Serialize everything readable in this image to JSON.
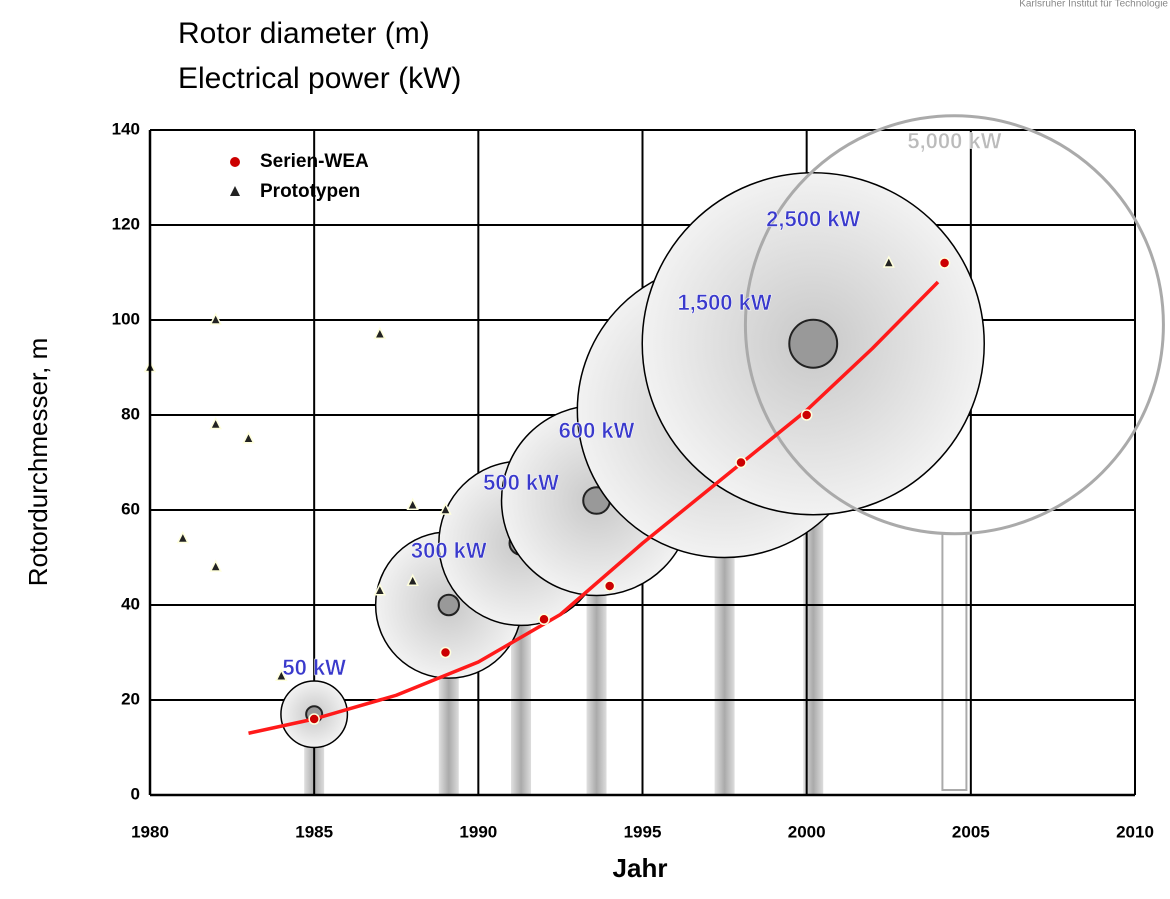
{
  "chart_data": {
    "type": "scatter",
    "title": [
      "Rotor diameter (m)",
      "Electrical power (kW)"
    ],
    "corner_text": "Karlsruher Institut für Technologie",
    "xlabel": "Jahr",
    "ylabel": "Rotordurchmesser, m",
    "xlim": [
      1980,
      2010
    ],
    "ylim": [
      0,
      140
    ],
    "xticks": [
      1980,
      1985,
      1990,
      1995,
      2000,
      2005,
      2010
    ],
    "yticks": [
      0,
      20,
      40,
      60,
      80,
      100,
      120,
      140
    ],
    "grid": true,
    "legend": "upper left",
    "series": [
      {
        "name": "Serien-WEA",
        "marker": "circle",
        "color": "#cc0000",
        "x": [
          1985,
          1989,
          1992,
          1994,
          1998,
          2000,
          2004.2
        ],
        "values": [
          16,
          30,
          37,
          44,
          70,
          80,
          112
        ]
      },
      {
        "name": "Prototypen",
        "marker": "triangle",
        "color": "#222222",
        "x": [
          1980,
          1981,
          1982,
          1982,
          1982,
          1983,
          1984,
          1987,
          1987,
          1988,
          1988,
          1989,
          2002.5
        ],
        "values": [
          90,
          54,
          100,
          78,
          48,
          75,
          25,
          97,
          43,
          61,
          45,
          60,
          112
        ]
      }
    ],
    "trend": {
      "type": "line",
      "color": "#ff1a1a",
      "x": [
        1983,
        1985,
        1987.5,
        1990,
        1992.5,
        1995,
        1997.5,
        2000,
        2002,
        2004
      ],
      "values": [
        13,
        16,
        21,
        28,
        38,
        53,
        67,
        81,
        94,
        108
      ]
    },
    "bubbles": {
      "type": "bubble",
      "labels": [
        "50 kW",
        "300 kW",
        "500 kW",
        "600 kW",
        "1,500 kW",
        "2,500 kW",
        "5,000 kW"
      ],
      "x": [
        1985,
        1989.1,
        1991.3,
        1993.6,
        1997.5,
        2000.2,
        2004.5
      ],
      "values": [
        17,
        40,
        53,
        62,
        81,
        95,
        99
      ],
      "sizes": [
        7,
        15.4,
        17.3,
        20,
        31,
        36,
        44
      ],
      "filled": [
        true,
        true,
        true,
        true,
        true,
        true,
        false
      ],
      "label_colors": [
        "#3a3acc",
        "#3a3acc",
        "#3a3acc",
        "#3a3acc",
        "#3a3acc",
        "#3a3acc",
        "#bbbbbb"
      ]
    }
  }
}
